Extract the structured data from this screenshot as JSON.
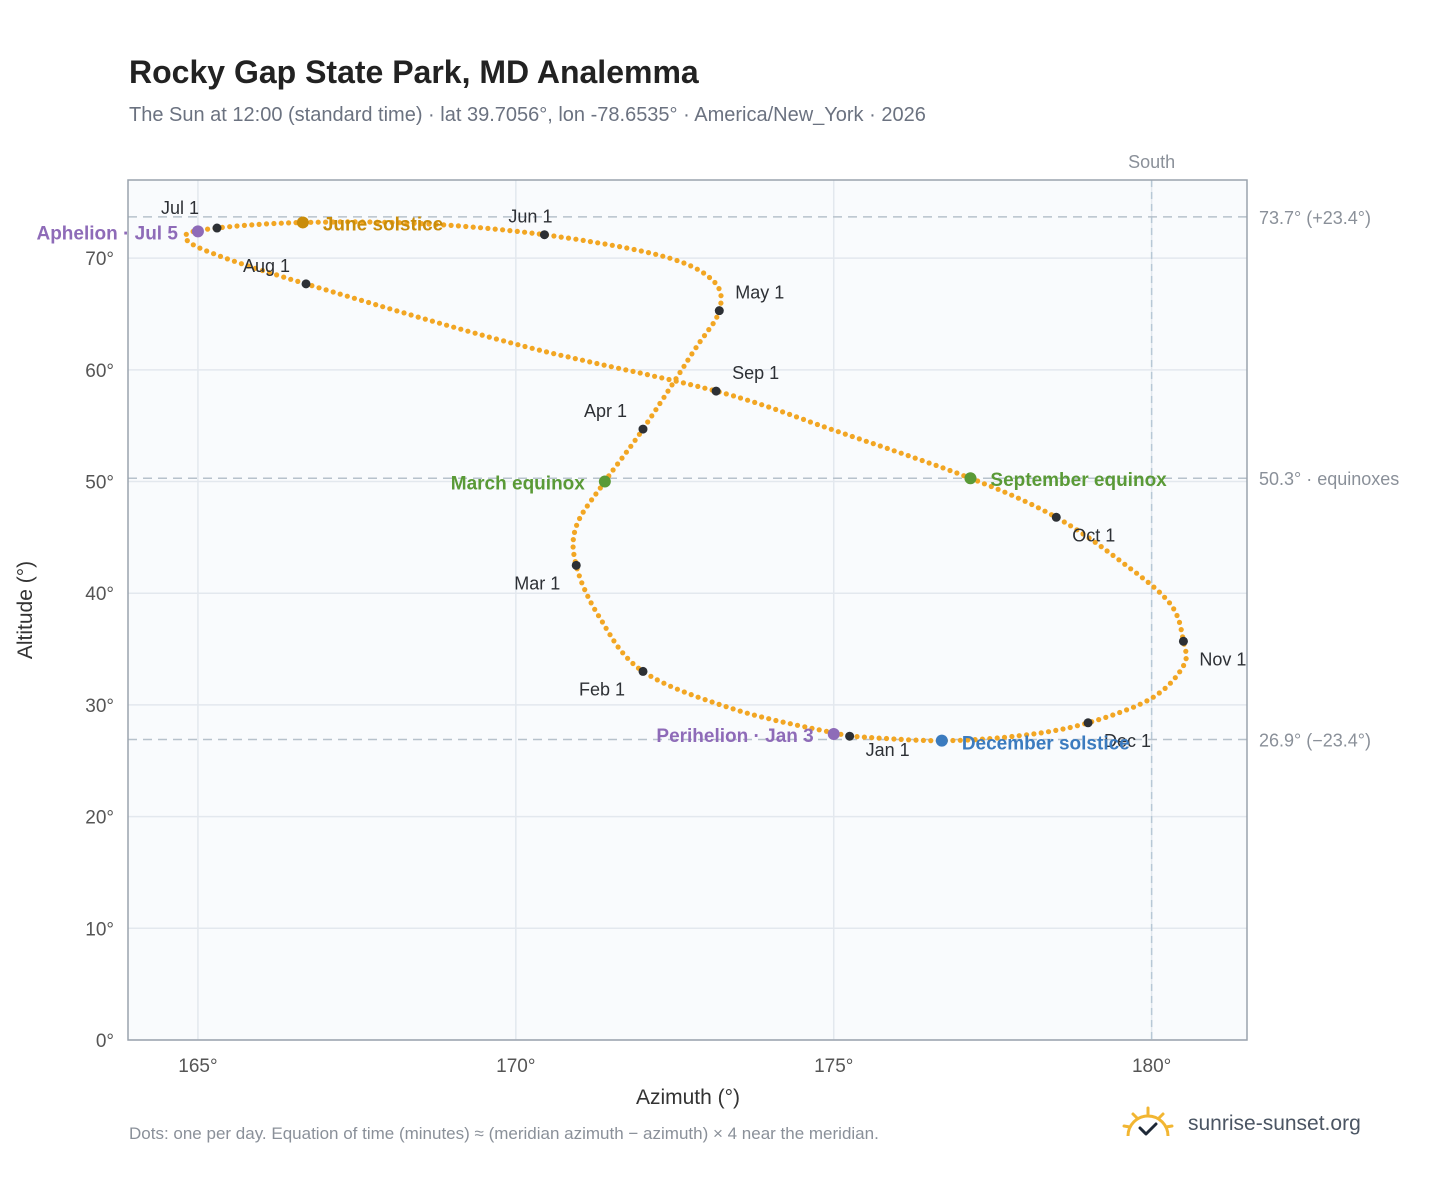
{
  "header": {
    "title": "Rocky Gap State Park, MD Analemma",
    "subtitle": "The Sun at 12:00 (standard time) · lat 39.7056°, lon -78.6535° · America/New_York · 2026"
  },
  "footer": {
    "note": "Dots: one per day. Equation of time (minutes) ≈ (meridian azimuth − azimuth) × 4 near the meridian.",
    "brand": "sunrise-sunset.org"
  },
  "colors": {
    "path": "#f2a623",
    "month_marker": "#2d3035",
    "solstice_june": "#c98c0a",
    "solstice_december": "#3b7bbf",
    "equinox": "#5a9a37",
    "apsis": "#8e6bb8",
    "reference_line": "#b7c2cc",
    "plot_bg": "#f9fbfd"
  },
  "chart_data": {
    "type": "scatter",
    "xlabel": "Azimuth (°)",
    "ylabel": "Altitude (°)",
    "xlim": [
      163.9,
      181.5
    ],
    "ylim": [
      0,
      77
    ],
    "x_ticks": [
      165,
      170,
      175,
      180
    ],
    "x_tick_labels": [
      "165°",
      "170°",
      "175°",
      "180°"
    ],
    "y_ticks": [
      0,
      10,
      20,
      30,
      40,
      50,
      60,
      70
    ],
    "y_tick_labels": [
      "0°",
      "10°",
      "20°",
      "30°",
      "40°",
      "50°",
      "60°",
      "70°"
    ],
    "grid": true,
    "meridian": {
      "azimuth": 180,
      "label": "South"
    },
    "reference_lines": [
      {
        "altitude": 73.7,
        "label": "73.7° (+23.4°)"
      },
      {
        "altitude": 50.3,
        "label": "50.3° · equinoxes"
      },
      {
        "altitude": 26.9,
        "label": "26.9° (−23.4°)"
      }
    ],
    "month_markers": [
      {
        "label": "Jan 1",
        "azimuth": 175.25,
        "altitude": 27.2
      },
      {
        "label": "Feb 1",
        "azimuth": 172.0,
        "altitude": 33.0
      },
      {
        "label": "Mar 1",
        "azimuth": 170.95,
        "altitude": 42.5
      },
      {
        "label": "Apr 1",
        "azimuth": 172.0,
        "altitude": 54.7
      },
      {
        "label": "May 1",
        "azimuth": 173.2,
        "altitude": 65.3
      },
      {
        "label": "Jun 1",
        "azimuth": 170.45,
        "altitude": 72.1
      },
      {
        "label": "Jul 1",
        "azimuth": 165.3,
        "altitude": 72.7
      },
      {
        "label": "Aug 1",
        "azimuth": 166.7,
        "altitude": 67.7
      },
      {
        "label": "Sep 1",
        "azimuth": 173.15,
        "altitude": 58.1
      },
      {
        "label": "Oct 1",
        "azimuth": 178.5,
        "altitude": 46.8
      },
      {
        "label": "Nov 1",
        "azimuth": 180.5,
        "altitude": 35.7
      },
      {
        "label": "Dec 1",
        "azimuth": 179.0,
        "altitude": 28.4
      }
    ],
    "events": [
      {
        "label": "June solstice",
        "azimuth": 166.65,
        "altitude": 73.2,
        "kind": "solstice_june"
      },
      {
        "label": "December solstice",
        "azimuth": 176.7,
        "altitude": 26.8,
        "kind": "solstice_december"
      },
      {
        "label": "March equinox",
        "azimuth": 171.4,
        "altitude": 50.0,
        "kind": "equinox"
      },
      {
        "label": "September equinox",
        "azimuth": 177.15,
        "altitude": 50.3,
        "kind": "equinox"
      },
      {
        "label": "Aphelion · Jul 5",
        "azimuth": 165.0,
        "altitude": 72.4,
        "kind": "apsis"
      },
      {
        "label": "Perihelion · Jan 3",
        "azimuth": 175.0,
        "altitude": 27.4,
        "kind": "apsis"
      }
    ],
    "daily_path_keypoints": [
      [
        175.25,
        27.2
      ],
      [
        176.7,
        26.8
      ],
      [
        178.0,
        27.3
      ],
      [
        179.0,
        28.4
      ],
      [
        180.0,
        30.6
      ],
      [
        180.5,
        33.5
      ],
      [
        180.5,
        35.7
      ],
      [
        180.3,
        39.0
      ],
      [
        179.6,
        42.5
      ],
      [
        178.5,
        46.8
      ],
      [
        177.15,
        50.3
      ],
      [
        175.0,
        54.6
      ],
      [
        173.15,
        58.1
      ],
      [
        170.0,
        62.3
      ],
      [
        166.7,
        67.7
      ],
      [
        165.2,
        70.5
      ],
      [
        164.8,
        72.0
      ],
      [
        165.3,
        72.7
      ],
      [
        166.65,
        73.2
      ],
      [
        168.5,
        73.1
      ],
      [
        170.45,
        72.1
      ],
      [
        172.3,
        70.2
      ],
      [
        173.1,
        68.0
      ],
      [
        173.2,
        65.3
      ],
      [
        172.8,
        61.7
      ],
      [
        172.0,
        54.7
      ],
      [
        171.4,
        50.0
      ],
      [
        170.95,
        46.0
      ],
      [
        170.95,
        42.5
      ],
      [
        171.3,
        38.0
      ],
      [
        172.0,
        33.0
      ],
      [
        173.5,
        29.5
      ],
      [
        175.25,
        27.2
      ]
    ]
  }
}
